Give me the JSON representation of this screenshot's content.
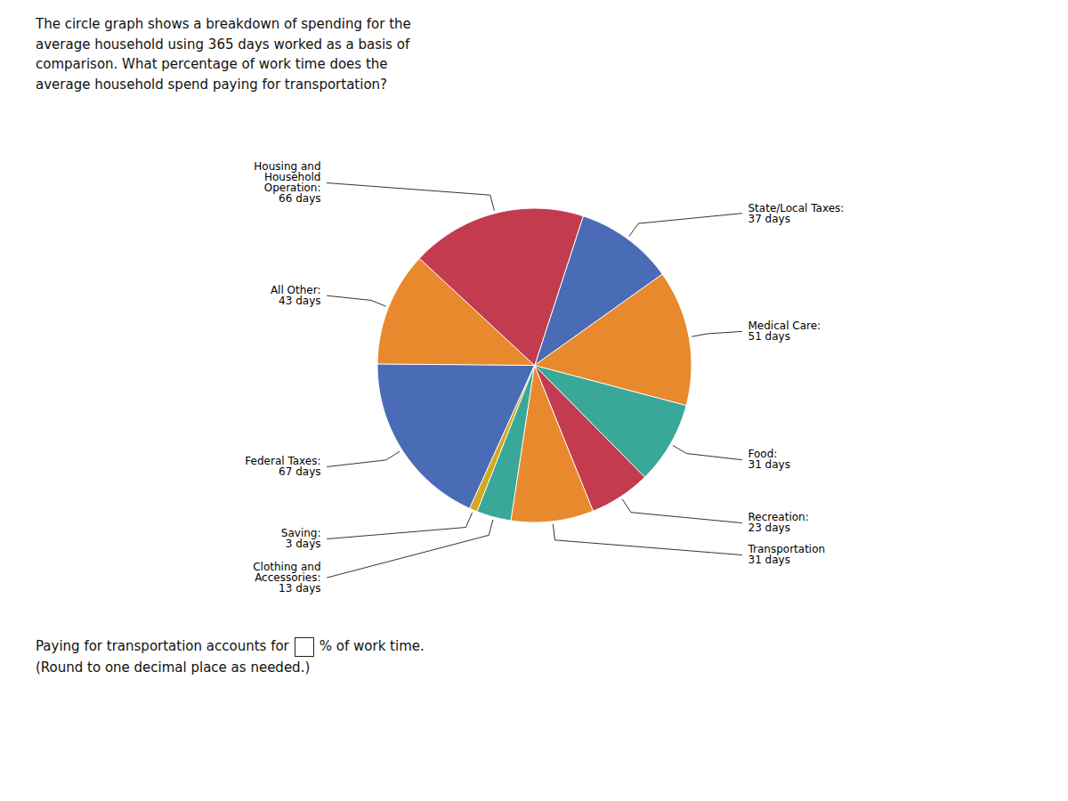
{
  "chart_data": {
    "type": "pie",
    "categories": [
      "State/Local Taxes:",
      "Medical Care:",
      "Food:",
      "Recreation:",
      "Transportation",
      "Clothing and\nAccessories:",
      "Saving:",
      "Federal Taxes:",
      "All Other:",
      "Housing and\nHousehold\nOperation:"
    ],
    "values": [
      37,
      51,
      31,
      23,
      31,
      13,
      3,
      67,
      43,
      66
    ],
    "value_labels": [
      "37 days",
      "51 days",
      "31 days",
      "23 days",
      "31 days",
      "13 days",
      "3 days",
      "67 days",
      "43 days",
      "66 days"
    ],
    "colors": [
      "#4A6BB5",
      "#E8892E",
      "#3AA898",
      "#C23B4E",
      "#E8892E",
      "#3AA898",
      "#D4A820",
      "#4A6BB5",
      "#E8892E",
      "#C23B4E"
    ],
    "data_labels": true,
    "annotations": [
      "The circle graph shows a breakdown of spending for the\naverage household using 365 days worked as a basis of\ncomparison. What percentage of work time does the\naverage household spend paying for transportation?",
      "Paying for transportation accounts for",
      "% of work time.",
      "(Round to one decimal place as needed.)"
    ]
  }
}
